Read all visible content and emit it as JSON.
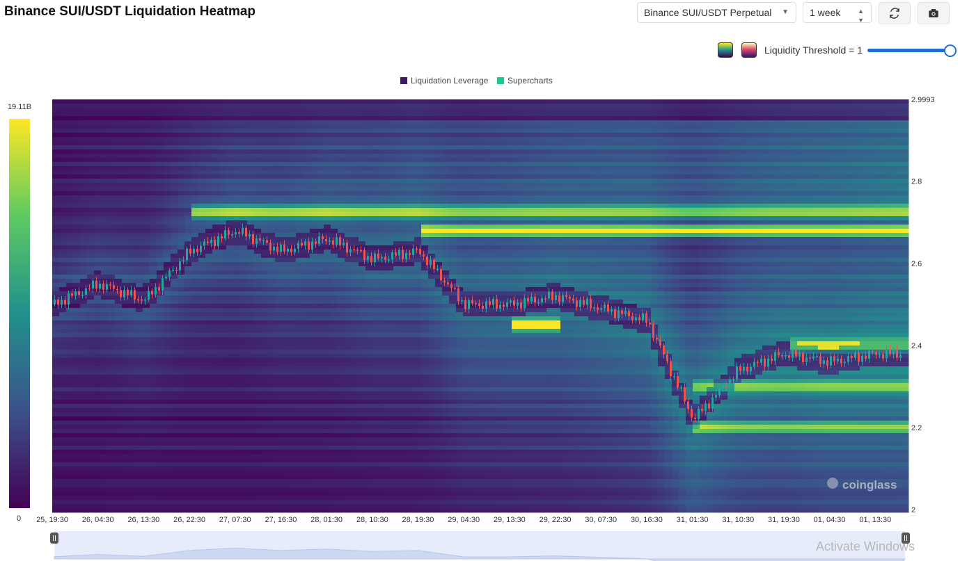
{
  "header": {
    "title": "Binance SUI/USDT Liquidation Heatmap",
    "pair_select": "Binance SUI/USDT Perpetual",
    "range_select": "1 week"
  },
  "controls": {
    "threshold_label": "Liquidity Threshold = 1",
    "threshold_value": 1
  },
  "colorbar": {
    "max_label": "19.11B",
    "min_label": "0",
    "colors": [
      "#440154",
      "#3b528b",
      "#21918c",
      "#5ec962",
      "#fde725"
    ]
  },
  "watermark": {
    "logo_text": "coinglass",
    "os_text": "Activate Windows"
  },
  "chart_data": {
    "type": "heatmap",
    "legend": [
      {
        "name": "Liquidation Leverage",
        "color": "#3d1a63"
      },
      {
        "name": "Supercharts",
        "color": "#1fc98a"
      }
    ],
    "legend_position": "top-center",
    "x_ticks": [
      "25, 19:30",
      "26, 04:30",
      "26, 13:30",
      "26, 22:30",
      "27, 07:30",
      "27, 16:30",
      "28, 01:30",
      "28, 10:30",
      "28, 19:30",
      "29, 04:30",
      "29, 13:30",
      "29, 22:30",
      "30, 07:30",
      "30, 16:30",
      "31, 01:30",
      "31, 10:30",
      "31, 19:30",
      "01, 04:30",
      "01, 13:30"
    ],
    "y_ticks": [
      "2.9993",
      "2.8",
      "2.6",
      "2.4",
      "2.2",
      "2"
    ],
    "ylim": [
      2,
      2.9993
    ],
    "price_series": [
      {
        "x": "25, 19:30",
        "y": 2.5
      },
      {
        "x": "26, 04:30",
        "y": 2.55
      },
      {
        "x": "26, 13:30",
        "y": 2.51
      },
      {
        "x": "26, 22:30",
        "y": 2.63
      },
      {
        "x": "27, 07:30",
        "y": 2.68
      },
      {
        "x": "27, 16:30",
        "y": 2.63
      },
      {
        "x": "28, 01:30",
        "y": 2.66
      },
      {
        "x": "28, 10:30",
        "y": 2.61
      },
      {
        "x": "28, 19:30",
        "y": 2.63
      },
      {
        "x": "29, 04:30",
        "y": 2.5
      },
      {
        "x": "29, 13:30",
        "y": 2.5
      },
      {
        "x": "29, 22:30",
        "y": 2.52
      },
      {
        "x": "30, 07:30",
        "y": 2.49
      },
      {
        "x": "30, 16:30",
        "y": 2.46
      },
      {
        "x": "31, 01:30",
        "y": 2.22
      },
      {
        "x": "31, 10:30",
        "y": 2.34
      },
      {
        "x": "31, 19:30",
        "y": 2.38
      },
      {
        "x": "01, 04:30",
        "y": 2.36
      },
      {
        "x": "01, 13:30",
        "y": 2.38
      }
    ],
    "liquidity_bands": [
      {
        "price": 2.68,
        "intensity": 1.0,
        "from": "28, 19:30"
      },
      {
        "price": 2.725,
        "intensity": 0.85,
        "from": "26, 22:30"
      },
      {
        "price": 2.45,
        "intensity": 0.95,
        "from": "29, 13:30",
        "to": "29, 22:30"
      },
      {
        "price": 2.4,
        "intensity": 0.7,
        "from": "31, 19:30"
      },
      {
        "price": 2.2,
        "intensity": 0.55,
        "from": "31, 01:30"
      },
      {
        "price": 2.3,
        "intensity": 0.5,
        "from": "31, 01:30"
      }
    ]
  }
}
